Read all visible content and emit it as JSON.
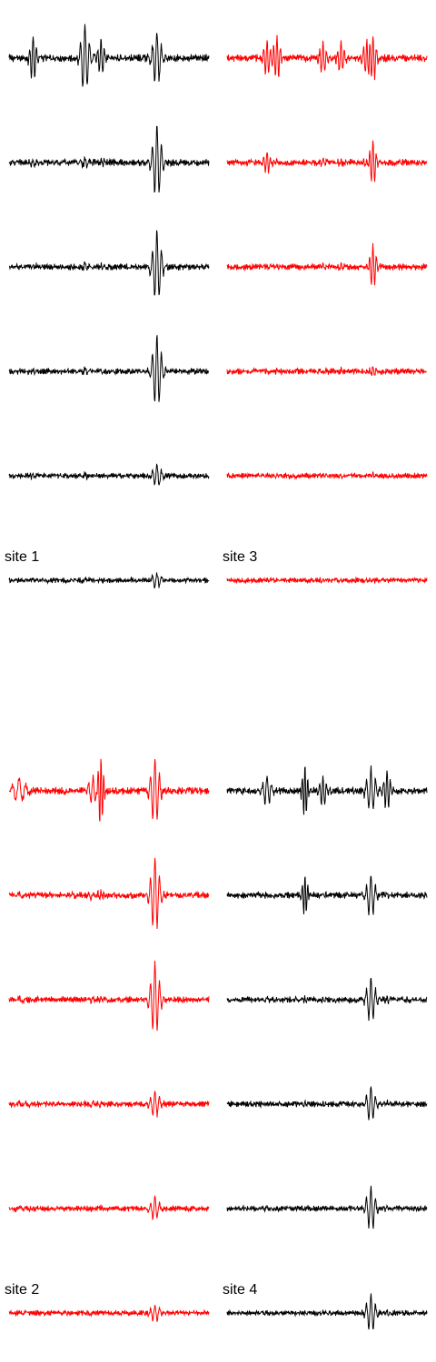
{
  "colors": {
    "black": "#000000",
    "red": "#ff0000"
  },
  "chart_data": {
    "type": "line",
    "description_of_values": "amplitude in arbitrary units, 6 stacked traces per site, trace 1 is top",
    "axes_visible": false,
    "grid": false,
    "sites": [
      {
        "label": "site 1",
        "color": "#000000",
        "noise": [
          1.0,
          0.9,
          0.85,
          0.8,
          0.75,
          0.7
        ],
        "events": [
          {
            "t": 0.12,
            "amp": [
              2.6,
              0.3,
              0.25,
              0.2,
              0.15,
              0.1
            ],
            "spread": 0.015
          },
          {
            "t": 0.38,
            "amp": [
              3.6,
              0.5,
              0.4,
              0.3,
              0.2,
              0.15
            ],
            "spread": 0.02
          },
          {
            "t": 0.46,
            "amp": [
              2.0,
              0.3,
              0.2,
              0.15,
              0.1,
              0.1
            ],
            "spread": 0.015
          },
          {
            "t": 0.74,
            "amp": [
              2.8,
              4.0,
              4.0,
              4.0,
              1.3,
              0.8
            ],
            "spread": 0.02
          }
        ]
      },
      {
        "label": "site 2",
        "color": "#ff0000",
        "noise": [
          1.0,
          0.9,
          0.85,
          0.8,
          0.75,
          0.7
        ],
        "events": [
          {
            "t": 0.05,
            "amp": [
              1.2,
              0.2,
              0.2,
              0.15,
              0.1,
              0.1
            ],
            "spread": 0.03
          },
          {
            "t": 0.42,
            "amp": [
              1.6,
              0.3,
              0.2,
              0.15,
              0.1,
              0.1
            ],
            "spread": 0.02
          },
          {
            "t": 0.46,
            "amp": [
              3.8,
              0.3,
              0.2,
              0.15,
              0.1,
              0.1
            ],
            "spread": 0.012
          },
          {
            "t": 0.73,
            "amp": [
              3.6,
              4.0,
              4.0,
              1.4,
              1.2,
              0.9
            ],
            "spread": 0.02
          }
        ]
      },
      {
        "label": "site 3",
        "color": "#ff0000",
        "noise": [
          1.0,
          0.9,
          0.85,
          0.8,
          0.75,
          0.7
        ],
        "events": [
          {
            "t": 0.2,
            "amp": [
              2.0,
              1.2,
              0.2,
              0.15,
              0.1,
              0.1
            ],
            "spread": 0.015
          },
          {
            "t": 0.25,
            "amp": [
              2.4,
              0.2,
              0.2,
              0.15,
              0.1,
              0.1
            ],
            "spread": 0.015
          },
          {
            "t": 0.48,
            "amp": [
              1.8,
              0.2,
              0.2,
              0.15,
              0.1,
              0.1
            ],
            "spread": 0.015
          },
          {
            "t": 0.57,
            "amp": [
              1.8,
              0.2,
              0.2,
              0.15,
              0.1,
              0.1
            ],
            "spread": 0.015
          },
          {
            "t": 0.7,
            "amp": [
              2.0,
              0.2,
              0.2,
              0.15,
              0.1,
              0.1
            ],
            "spread": 0.015
          },
          {
            "t": 0.73,
            "amp": [
              2.6,
              2.4,
              2.4,
              0.5,
              0.3,
              0.2
            ],
            "spread": 0.015
          }
        ]
      },
      {
        "label": "site 4",
        "color": "#000000",
        "noise": [
          1.0,
          0.9,
          0.85,
          0.8,
          0.75,
          0.7
        ],
        "events": [
          {
            "t": 0.2,
            "amp": [
              1.6,
              0.2,
              0.2,
              0.15,
              0.1,
              0.1
            ],
            "spread": 0.02
          },
          {
            "t": 0.39,
            "amp": [
              3.0,
              2.4,
              0.3,
              0.2,
              0.15,
              0.1
            ],
            "spread": 0.012
          },
          {
            "t": 0.48,
            "amp": [
              1.8,
              0.2,
              0.2,
              0.15,
              0.1,
              0.1
            ],
            "spread": 0.015
          },
          {
            "t": 0.72,
            "amp": [
              2.4,
              2.2,
              2.4,
              1.8,
              2.4,
              2.0
            ],
            "spread": 0.02
          },
          {
            "t": 0.8,
            "amp": [
              2.2,
              0.3,
              0.3,
              0.2,
              0.2,
              0.2
            ],
            "spread": 0.015
          }
        ]
      }
    ]
  }
}
